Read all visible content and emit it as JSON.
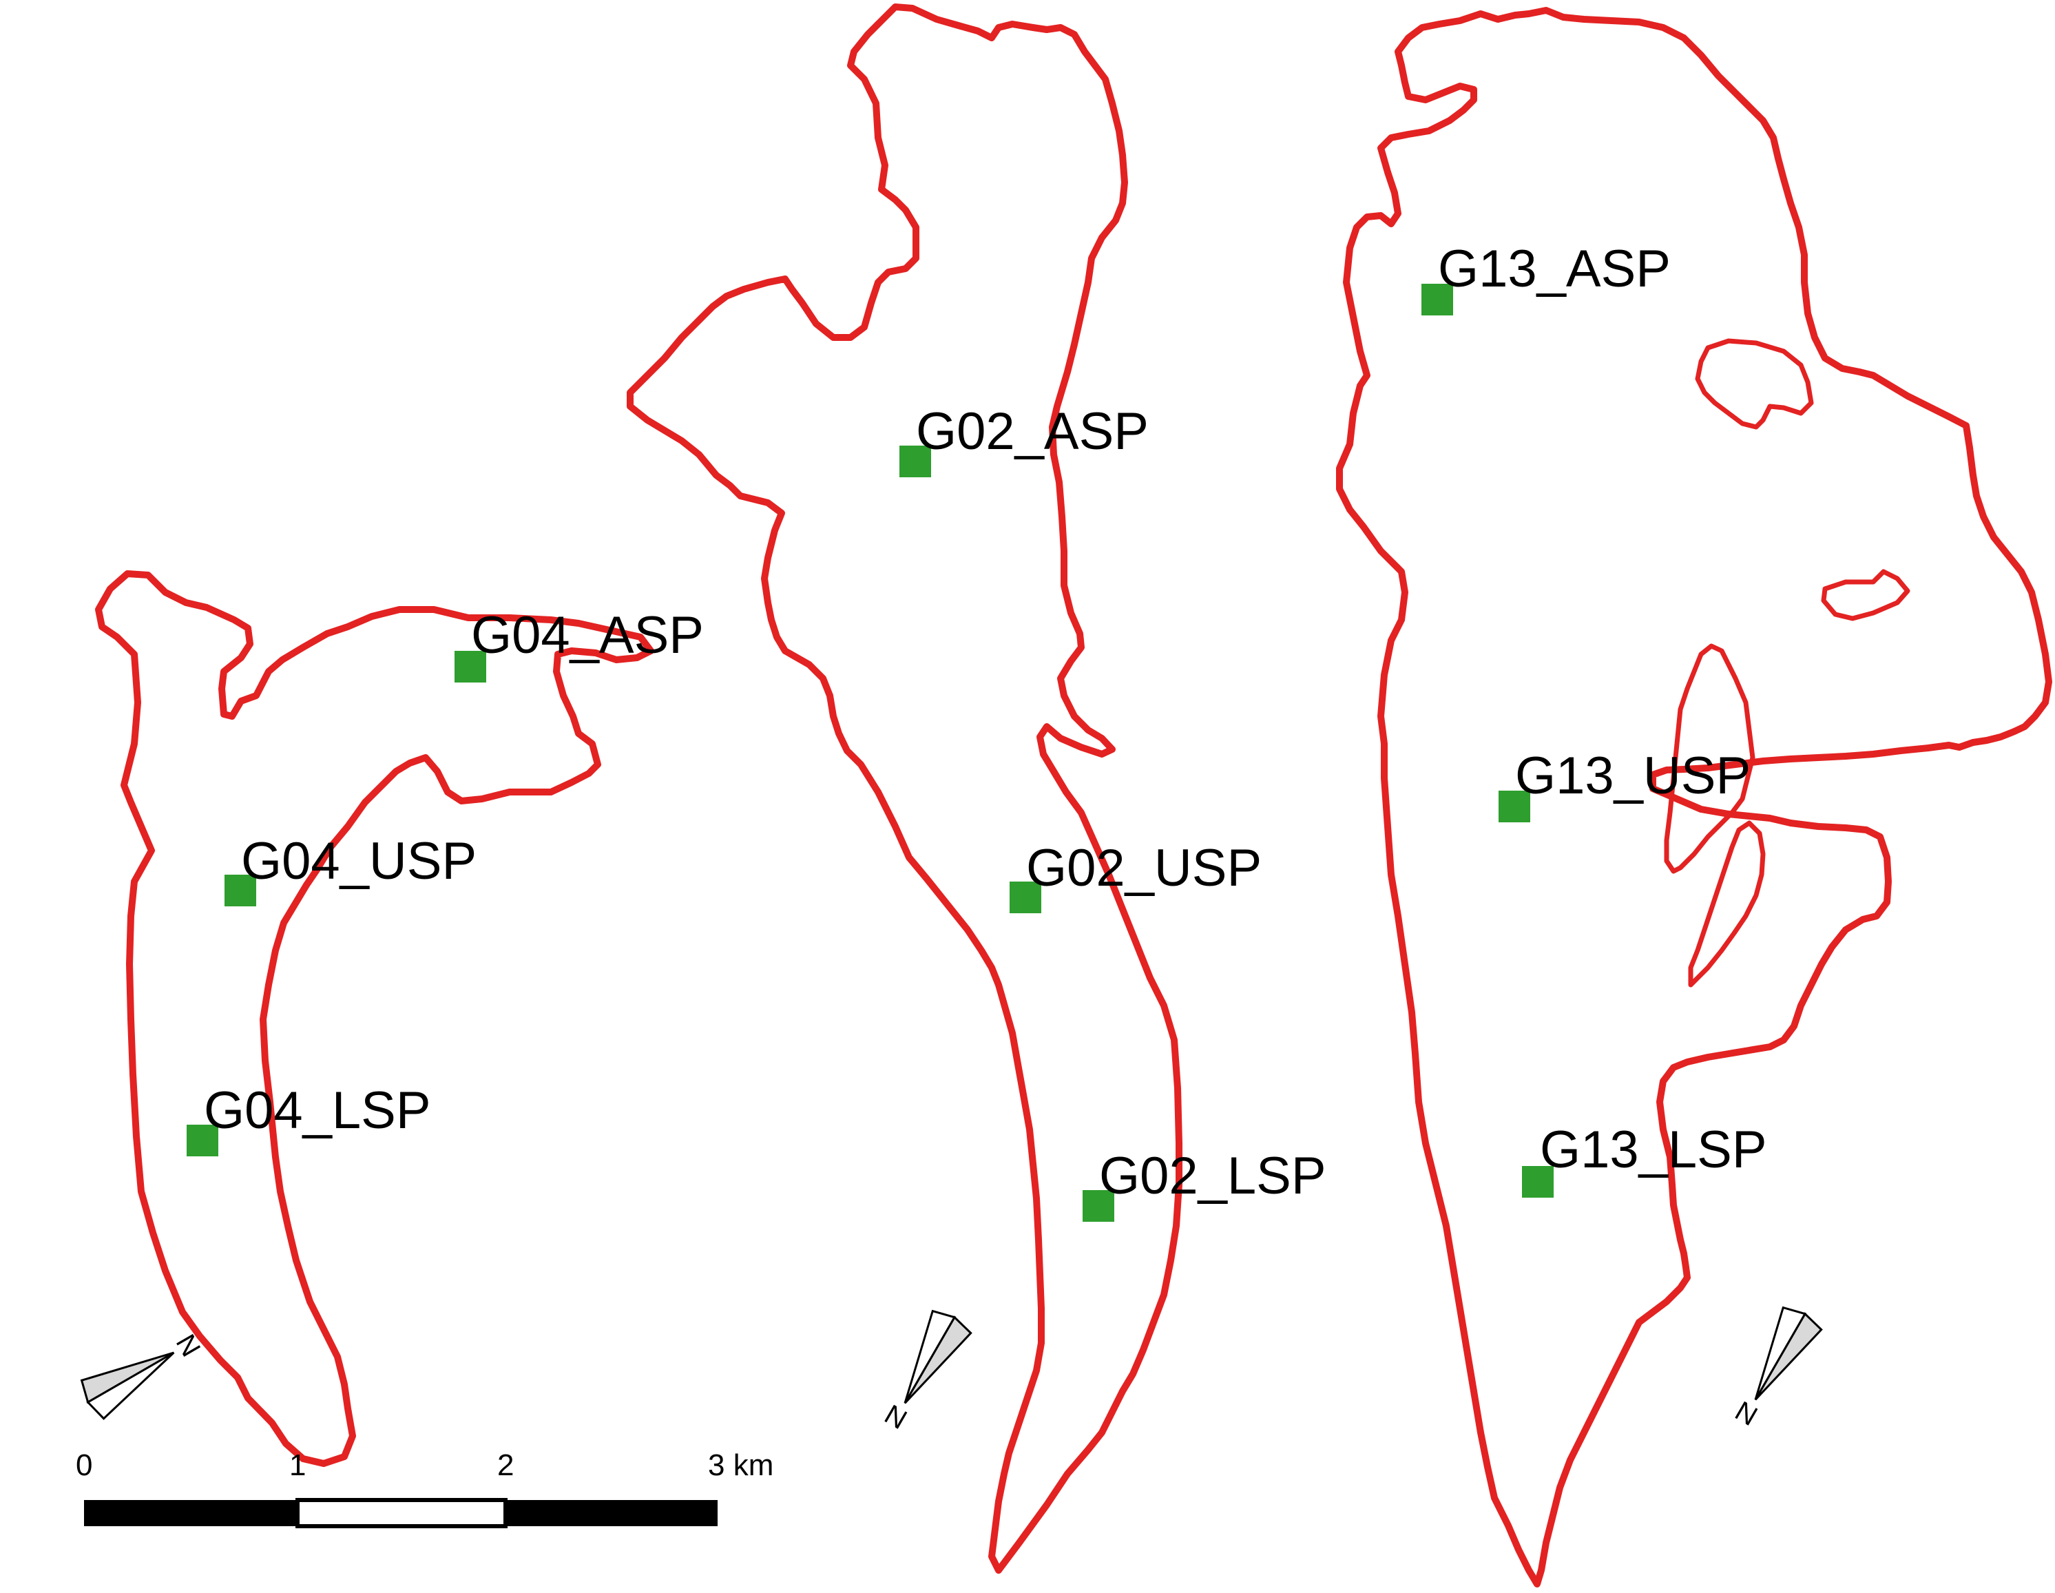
{
  "map": {
    "colors": {
      "outline": "#e32222",
      "marker": "#2e9e2e",
      "scale_dark": "#000000",
      "scale_light": "#ffffff",
      "arrow_fill": "#d9d9d9"
    },
    "marker_shape": "square",
    "sites": [
      {
        "id": "g04-asp",
        "label": "G04_ASP"
      },
      {
        "id": "g04-usp",
        "label": "G04_USP"
      },
      {
        "id": "g04-lsp",
        "label": "G04_LSP"
      },
      {
        "id": "g02-asp",
        "label": "G02_ASP"
      },
      {
        "id": "g02-usp",
        "label": "G02_USP"
      },
      {
        "id": "g02-lsp",
        "label": "G02_LSP"
      },
      {
        "id": "g13-asp",
        "label": "G13_ASP"
      },
      {
        "id": "g13-usp",
        "label": "G13_USP"
      },
      {
        "id": "g13-lsp",
        "label": "G13_LSP"
      }
    ],
    "scale_bar": {
      "ticks": [
        "0",
        "1",
        "2",
        "3 km"
      ]
    },
    "north_arrows": [
      {
        "id": "left",
        "letter": "N"
      },
      {
        "id": "middle",
        "letter": "N"
      },
      {
        "id": "right",
        "letter": "N"
      }
    ]
  }
}
